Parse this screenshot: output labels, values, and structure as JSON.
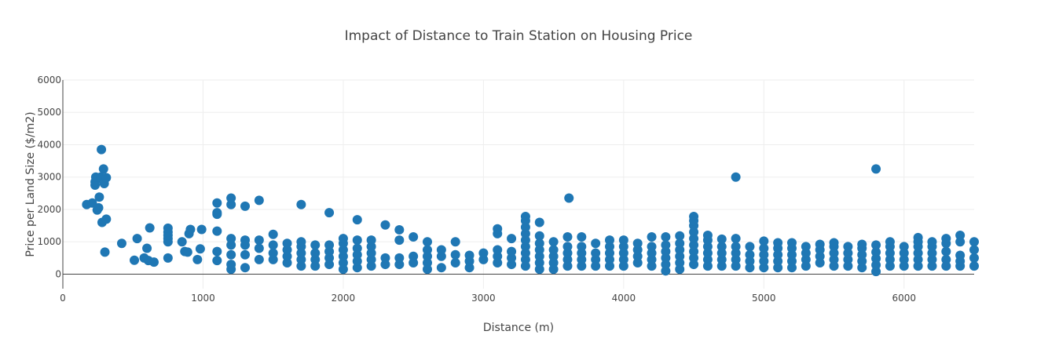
{
  "chart_data": {
    "type": "scatter",
    "title": "Impact of Distance to Train Station on Housing Price",
    "xlabel": "Distance (m)",
    "ylabel": "Price per Land Size ($/m2)",
    "xlim": [
      0,
      6500
    ],
    "ylim": [
      -450,
      6000
    ],
    "x_ticks": [
      0,
      1000,
      2000,
      3000,
      4000,
      5000,
      6000
    ],
    "y_ticks": [
      0,
      1000,
      2000,
      3000,
      4000,
      5000,
      6000
    ],
    "grid": true,
    "legend": "none",
    "color": "#1f77b4",
    "points": [
      [
        170,
        2150
      ],
      [
        210,
        2200
      ],
      [
        230,
        2750
      ],
      [
        230,
        2850
      ],
      [
        235,
        3000
      ],
      [
        245,
        1980
      ],
      [
        255,
        2050
      ],
      [
        260,
        2380
      ],
      [
        270,
        3000
      ],
      [
        275,
        3850
      ],
      [
        280,
        1600
      ],
      [
        290,
        3250
      ],
      [
        295,
        2800
      ],
      [
        300,
        680
      ],
      [
        310,
        2980
      ],
      [
        310,
        1700
      ],
      [
        420,
        950
      ],
      [
        510,
        430
      ],
      [
        530,
        1100
      ],
      [
        580,
        500
      ],
      [
        600,
        800
      ],
      [
        610,
        420
      ],
      [
        620,
        1430
      ],
      [
        650,
        370
      ],
      [
        750,
        500
      ],
      [
        750,
        1000
      ],
      [
        750,
        1100
      ],
      [
        750,
        1200
      ],
      [
        750,
        1300
      ],
      [
        750,
        1420
      ],
      [
        850,
        1000
      ],
      [
        870,
        700
      ],
      [
        890,
        680
      ],
      [
        900,
        1250
      ],
      [
        910,
        1380
      ],
      [
        960,
        450
      ],
      [
        980,
        780
      ],
      [
        990,
        1380
      ],
      [
        1100,
        420
      ],
      [
        1100,
        700
      ],
      [
        1100,
        1330
      ],
      [
        1100,
        1850
      ],
      [
        1100,
        1900
      ],
      [
        1100,
        2200
      ],
      [
        1200,
        150
      ],
      [
        1200,
        300
      ],
      [
        1200,
        600
      ],
      [
        1200,
        900
      ],
      [
        1200,
        1100
      ],
      [
        1200,
        2150
      ],
      [
        1200,
        2350
      ],
      [
        1300,
        200
      ],
      [
        1300,
        600
      ],
      [
        1300,
        900
      ],
      [
        1300,
        1050
      ],
      [
        1300,
        2100
      ],
      [
        1400,
        450
      ],
      [
        1400,
        800
      ],
      [
        1400,
        1050
      ],
      [
        1400,
        2280
      ],
      [
        1500,
        450
      ],
      [
        1500,
        650
      ],
      [
        1500,
        900
      ],
      [
        1500,
        1230
      ],
      [
        1600,
        350
      ],
      [
        1600,
        550
      ],
      [
        1600,
        750
      ],
      [
        1600,
        950
      ],
      [
        1700,
        250
      ],
      [
        1700,
        450
      ],
      [
        1700,
        650
      ],
      [
        1700,
        850
      ],
      [
        1700,
        1000
      ],
      [
        1700,
        2150
      ],
      [
        1800,
        250
      ],
      [
        1800,
        450
      ],
      [
        1800,
        650
      ],
      [
        1800,
        900
      ],
      [
        1900,
        300
      ],
      [
        1900,
        500
      ],
      [
        1900,
        700
      ],
      [
        1900,
        900
      ],
      [
        1900,
        1900
      ],
      [
        2000,
        150
      ],
      [
        2000,
        350
      ],
      [
        2000,
        550
      ],
      [
        2000,
        750
      ],
      [
        2000,
        950
      ],
      [
        2000,
        1100
      ],
      [
        2100,
        200
      ],
      [
        2100,
        400
      ],
      [
        2100,
        600
      ],
      [
        2100,
        800
      ],
      [
        2100,
        1050
      ],
      [
        2100,
        1680
      ],
      [
        2200,
        250
      ],
      [
        2200,
        450
      ],
      [
        2200,
        650
      ],
      [
        2200,
        850
      ],
      [
        2200,
        1050
      ],
      [
        2300,
        300
      ],
      [
        2300,
        500
      ],
      [
        2300,
        1520
      ],
      [
        2400,
        300
      ],
      [
        2400,
        500
      ],
      [
        2400,
        1050
      ],
      [
        2400,
        1370
      ],
      [
        2500,
        350
      ],
      [
        2500,
        550
      ],
      [
        2500,
        1150
      ],
      [
        2600,
        150
      ],
      [
        2600,
        350
      ],
      [
        2600,
        550
      ],
      [
        2600,
        750
      ],
      [
        2600,
        1000
      ],
      [
        2700,
        200
      ],
      [
        2700,
        550
      ],
      [
        2700,
        750
      ],
      [
        2800,
        350
      ],
      [
        2800,
        600
      ],
      [
        2800,
        1000
      ],
      [
        2900,
        200
      ],
      [
        2900,
        400
      ],
      [
        2900,
        580
      ],
      [
        3000,
        450
      ],
      [
        3000,
        650
      ],
      [
        3100,
        350
      ],
      [
        3100,
        550
      ],
      [
        3100,
        750
      ],
      [
        3100,
        1250
      ],
      [
        3100,
        1400
      ],
      [
        3200,
        300
      ],
      [
        3200,
        500
      ],
      [
        3200,
        700
      ],
      [
        3200,
        1100
      ],
      [
        3300,
        250
      ],
      [
        3300,
        450
      ],
      [
        3300,
        650
      ],
      [
        3300,
        850
      ],
      [
        3300,
        1050
      ],
      [
        3300,
        1250
      ],
      [
        3300,
        1450
      ],
      [
        3300,
        1650
      ],
      [
        3300,
        1780
      ],
      [
        3400,
        150
      ],
      [
        3400,
        350
      ],
      [
        3400,
        550
      ],
      [
        3400,
        750
      ],
      [
        3400,
        950
      ],
      [
        3400,
        1180
      ],
      [
        3400,
        1600
      ],
      [
        3500,
        150
      ],
      [
        3500,
        350
      ],
      [
        3500,
        550
      ],
      [
        3500,
        750
      ],
      [
        3500,
        1000
      ],
      [
        3600,
        250
      ],
      [
        3600,
        450
      ],
      [
        3600,
        650
      ],
      [
        3600,
        850
      ],
      [
        3600,
        1150
      ],
      [
        3610,
        2350
      ],
      [
        3700,
        250
      ],
      [
        3700,
        450
      ],
      [
        3700,
        650
      ],
      [
        3700,
        850
      ],
      [
        3700,
        1150
      ],
      [
        3800,
        250
      ],
      [
        3800,
        450
      ],
      [
        3800,
        650
      ],
      [
        3800,
        950
      ],
      [
        3900,
        250
      ],
      [
        3900,
        450
      ],
      [
        3900,
        650
      ],
      [
        3900,
        850
      ],
      [
        3900,
        1050
      ],
      [
        4000,
        250
      ],
      [
        4000,
        450
      ],
      [
        4000,
        650
      ],
      [
        4000,
        850
      ],
      [
        4000,
        1050
      ],
      [
        4100,
        350
      ],
      [
        4100,
        550
      ],
      [
        4100,
        750
      ],
      [
        4100,
        950
      ],
      [
        4200,
        250
      ],
      [
        4200,
        450
      ],
      [
        4200,
        650
      ],
      [
        4200,
        850
      ],
      [
        4200,
        1150
      ],
      [
        4300,
        100
      ],
      [
        4300,
        300
      ],
      [
        4300,
        500
      ],
      [
        4300,
        700
      ],
      [
        4300,
        900
      ],
      [
        4300,
        1150
      ],
      [
        4400,
        150
      ],
      [
        4400,
        350
      ],
      [
        4400,
        550
      ],
      [
        4400,
        750
      ],
      [
        4400,
        950
      ],
      [
        4400,
        1180
      ],
      [
        4500,
        300
      ],
      [
        4500,
        500
      ],
      [
        4500,
        700
      ],
      [
        4500,
        900
      ],
      [
        4500,
        1100
      ],
      [
        4500,
        1300
      ],
      [
        4500,
        1500
      ],
      [
        4500,
        1650
      ],
      [
        4500,
        1780
      ],
      [
        4600,
        250
      ],
      [
        4600,
        450
      ],
      [
        4600,
        650
      ],
      [
        4600,
        850
      ],
      [
        4600,
        1050
      ],
      [
        4600,
        1200
      ],
      [
        4700,
        250
      ],
      [
        4700,
        450
      ],
      [
        4700,
        650
      ],
      [
        4700,
        850
      ],
      [
        4700,
        1080
      ],
      [
        4800,
        250
      ],
      [
        4800,
        450
      ],
      [
        4800,
        650
      ],
      [
        4800,
        850
      ],
      [
        4800,
        1100
      ],
      [
        4800,
        3000
      ],
      [
        4900,
        200
      ],
      [
        4900,
        400
      ],
      [
        4900,
        600
      ],
      [
        4900,
        850
      ],
      [
        5000,
        200
      ],
      [
        5000,
        400
      ],
      [
        5000,
        600
      ],
      [
        5000,
        800
      ],
      [
        5000,
        1020
      ],
      [
        5100,
        200
      ],
      [
        5100,
        400
      ],
      [
        5100,
        600
      ],
      [
        5100,
        800
      ],
      [
        5100,
        970
      ],
      [
        5200,
        200
      ],
      [
        5200,
        400
      ],
      [
        5200,
        600
      ],
      [
        5200,
        800
      ],
      [
        5200,
        970
      ],
      [
        5300,
        250
      ],
      [
        5300,
        450
      ],
      [
        5300,
        650
      ],
      [
        5300,
        850
      ],
      [
        5400,
        350
      ],
      [
        5400,
        550
      ],
      [
        5400,
        750
      ],
      [
        5400,
        920
      ],
      [
        5500,
        250
      ],
      [
        5500,
        450
      ],
      [
        5500,
        650
      ],
      [
        5500,
        850
      ],
      [
        5500,
        970
      ],
      [
        5600,
        250
      ],
      [
        5600,
        450
      ],
      [
        5600,
        650
      ],
      [
        5600,
        850
      ],
      [
        5700,
        200
      ],
      [
        5700,
        400
      ],
      [
        5700,
        600
      ],
      [
        5700,
        800
      ],
      [
        5700,
        920
      ],
      [
        5800,
        80
      ],
      [
        5800,
        280
      ],
      [
        5800,
        480
      ],
      [
        5800,
        680
      ],
      [
        5800,
        900
      ],
      [
        5800,
        3250
      ],
      [
        5900,
        250
      ],
      [
        5900,
        450
      ],
      [
        5900,
        650
      ],
      [
        5900,
        850
      ],
      [
        5900,
        1000
      ],
      [
        6000,
        250
      ],
      [
        6000,
        450
      ],
      [
        6000,
        650
      ],
      [
        6000,
        850
      ],
      [
        6100,
        250
      ],
      [
        6100,
        450
      ],
      [
        6100,
        650
      ],
      [
        6100,
        850
      ],
      [
        6100,
        1000
      ],
      [
        6100,
        1130
      ],
      [
        6200,
        250
      ],
      [
        6200,
        450
      ],
      [
        6200,
        650
      ],
      [
        6200,
        850
      ],
      [
        6200,
        1000
      ],
      [
        6300,
        250
      ],
      [
        6300,
        450
      ],
      [
        6300,
        700
      ],
      [
        6300,
        950
      ],
      [
        6300,
        1100
      ],
      [
        6400,
        250
      ],
      [
        6400,
        400
      ],
      [
        6400,
        580
      ],
      [
        6400,
        1000
      ],
      [
        6400,
        1200
      ],
      [
        6500,
        250
      ],
      [
        6500,
        500
      ],
      [
        6500,
        750
      ],
      [
        6500,
        1000
      ]
    ]
  }
}
